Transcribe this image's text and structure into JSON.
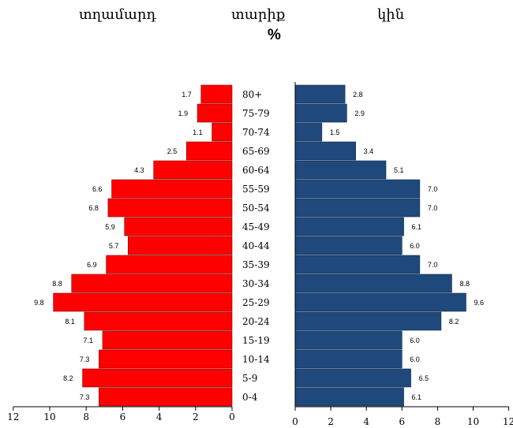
{
  "header": {
    "left_label": "տղամարդ",
    "center_label": "տարիք",
    "right_label": "կին",
    "unit": "%"
  },
  "chart_data": {
    "type": "bar",
    "orientation": "horizontal",
    "title": "",
    "categories": [
      "0-4",
      "5-9",
      "10-14",
      "15-19",
      "20-24",
      "25-29",
      "30-34",
      "35-39",
      "40-44",
      "45-49",
      "50-54",
      "55-59",
      "60-64",
      "65-69",
      "70-74",
      "75-79",
      "80+"
    ],
    "series": [
      {
        "name": "տղամարդ",
        "color": "#ff0000",
        "values": [
          7.3,
          8.2,
          7.3,
          7.1,
          8.1,
          9.8,
          8.8,
          6.9,
          5.7,
          5.9,
          6.8,
          6.6,
          4.3,
          2.5,
          1.1,
          1.9,
          1.7
        ],
        "labels": [
          "7.3",
          "8.2",
          "7.3",
          "7.1",
          "8.1",
          "9.8",
          "8.8",
          "6.9",
          "5.7",
          "5.9",
          "6.8",
          "6.6",
          "4.3",
          "2.5",
          "1.1",
          "1.9",
          "1.7"
        ]
      },
      {
        "name": "կին",
        "color": "#1f497d",
        "values": [
          6.1,
          6.5,
          6.0,
          6.0,
          8.2,
          9.6,
          8.8,
          7.0,
          6.0,
          6.1,
          7.0,
          7.0,
          5.1,
          3.4,
          1.5,
          2.9,
          2.8
        ],
        "labels": [
          "6.1",
          "6.5",
          "6.0",
          "6.0",
          "8.2",
          "9.6",
          "8.8",
          "7.0",
          "6.0",
          "6.1",
          "7.0",
          "7.0",
          "5.1",
          "3.4",
          "1.5",
          "2.9",
          "2.8"
        ]
      }
    ],
    "xlim": [
      0,
      12
    ],
    "left_ticks": [
      "12",
      "10",
      "8",
      "6",
      "4",
      "2",
      "0"
    ],
    "right_ticks": [
      "0",
      "2",
      "4",
      "6",
      "8",
      "10",
      "12"
    ],
    "grid": false,
    "legend": "none"
  }
}
